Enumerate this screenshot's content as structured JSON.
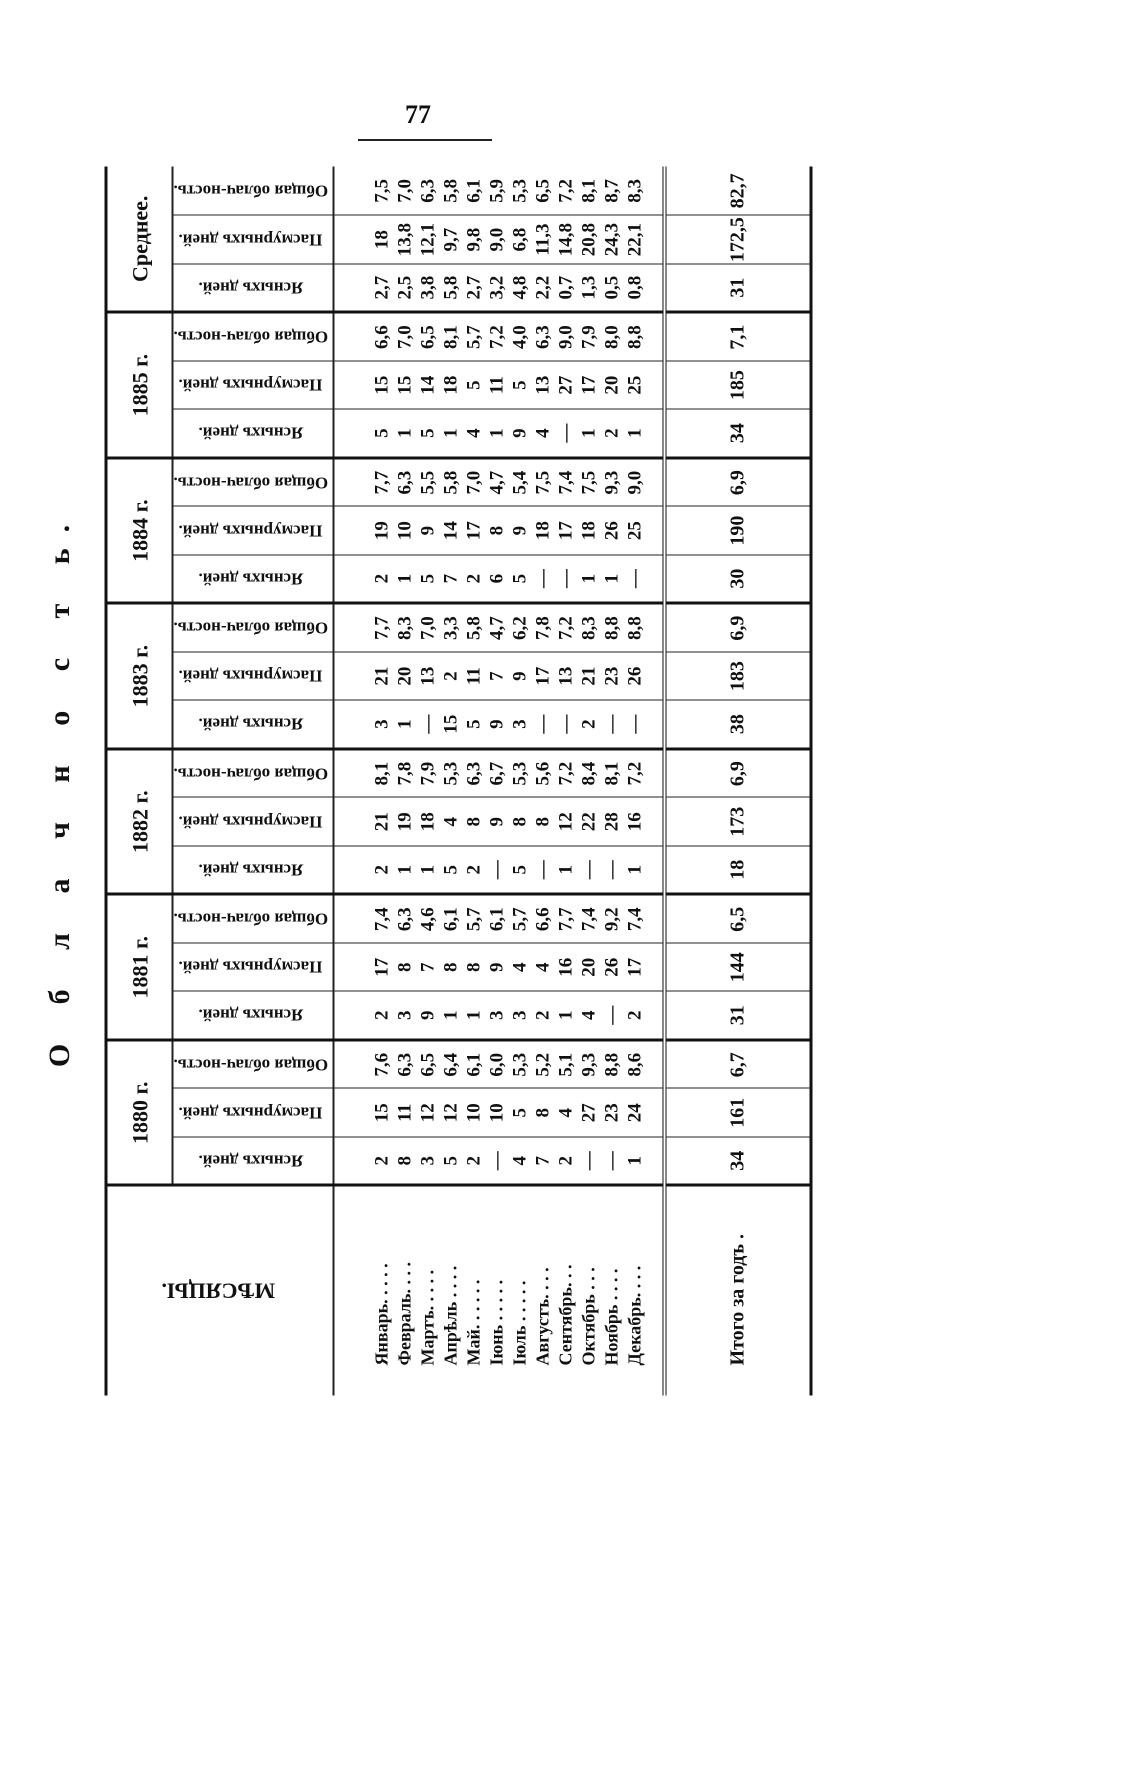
{
  "page_number": "77",
  "title": "О б л а ч н о с т ь.",
  "table": {
    "months_header": "МѢСЯЦЫ.",
    "subheaders": {
      "clear": "Ясныхъ дней.",
      "cloudy": "Пасмурныхъ дней.",
      "cloudiness": "Общая облач-ность."
    },
    "months": [
      "Январь. . . . .",
      "Февраль. . . .",
      "Мартъ. . . . .",
      "Апрѣль . . . .",
      "Май. . . . . .",
      "Іюнь . . . . .",
      "Іюль . . . . .",
      "Августъ. . . .",
      "Сентябрь. . .",
      "Октябрь . . .",
      "Ноябрь . . . .",
      "Декабрь. . . ."
    ],
    "total_label": "Итого за годъ .",
    "groups": [
      {
        "label": "1880 г.",
        "clear": [
          "2",
          "8",
          "3",
          "5",
          "2",
          "—",
          "4",
          "7",
          "2",
          "—",
          "—",
          "1"
        ],
        "cloudy": [
          "15",
          "11",
          "12",
          "12",
          "10",
          "10",
          "5",
          "8",
          "4",
          "27",
          "23",
          "24"
        ],
        "cloudiness": [
          "7,6",
          "6,3",
          "6,5",
          "6,4",
          "6,1",
          "6,0",
          "5,3",
          "5,2",
          "5,1",
          "9,3",
          "8,8",
          "8,6"
        ],
        "total": {
          "clear": "34",
          "cloudy": "161",
          "cloudiness": "6,7"
        }
      },
      {
        "label": "1881 г.",
        "clear": [
          "2",
          "3",
          "9",
          "1",
          "1",
          "3",
          "3",
          "2",
          "1",
          "4",
          "—",
          "2"
        ],
        "cloudy": [
          "17",
          "8",
          "7",
          "8",
          "8",
          "9",
          "4",
          "4",
          "16",
          "20",
          "26",
          "17"
        ],
        "cloudiness": [
          "7,4",
          "6,3",
          "4,6",
          "6,1",
          "5,7",
          "6,1",
          "5,7",
          "6,6",
          "7,7",
          "7,4",
          "9,2",
          "7,4"
        ],
        "total": {
          "clear": "31",
          "cloudy": "144",
          "cloudiness": "6,5"
        }
      },
      {
        "label": "1882 г.",
        "clear": [
          "2",
          "1",
          "1",
          "5",
          "2",
          "—",
          "5",
          "—",
          "1",
          "—",
          "—",
          "1"
        ],
        "cloudy": [
          "21",
          "19",
          "18",
          "4",
          "8",
          "9",
          "8",
          "8",
          "12",
          "22",
          "28",
          "16"
        ],
        "cloudiness": [
          "8,1",
          "7,8",
          "7,9",
          "5,3",
          "6,3",
          "6,7",
          "5,3",
          "5,6",
          "7,2",
          "8,4",
          "8,1",
          "7,2"
        ],
        "total": {
          "clear": "18",
          "cloudy": "173",
          "cloudiness": "6,9"
        }
      },
      {
        "label": "1883 г.",
        "clear": [
          "3",
          "1",
          "—",
          "15",
          "5",
          "9",
          "3",
          "—",
          "—",
          "2",
          "—",
          "—"
        ],
        "cloudy": [
          "21",
          "20",
          "13",
          "2",
          "11",
          "7",
          "9",
          "17",
          "13",
          "21",
          "23",
          "26"
        ],
        "cloudiness": [
          "7,7",
          "8,3",
          "7,0",
          "3,3",
          "5,8",
          "4,7",
          "6,2",
          "7,8",
          "7,2",
          "8,3",
          "8,8",
          "8,8"
        ],
        "total": {
          "clear": "38",
          "cloudy": "183",
          "cloudiness": "6,9"
        }
      },
      {
        "label": "1884 г.",
        "clear": [
          "2",
          "1",
          "5",
          "7",
          "2",
          "6",
          "5",
          "—",
          "—",
          "1",
          "1",
          "—"
        ],
        "cloudy": [
          "19",
          "10",
          "9",
          "14",
          "17",
          "8",
          "9",
          "18",
          "17",
          "18",
          "26",
          "25"
        ],
        "cloudiness": [
          "7,7",
          "6,3",
          "5,5",
          "5,8",
          "7,0",
          "4,7",
          "5,4",
          "7,5",
          "7,4",
          "7,5",
          "9,3",
          "9,0"
        ],
        "total": {
          "clear": "30",
          "cloudy": "190",
          "cloudiness": "6,9"
        }
      },
      {
        "label": "1885 г.",
        "clear": [
          "5",
          "1",
          "5",
          "1",
          "4",
          "1",
          "9",
          "4",
          "—",
          "1",
          "2",
          "1"
        ],
        "cloudy": [
          "15",
          "15",
          "14",
          "18",
          "5",
          "11",
          "5",
          "13",
          "27",
          "17",
          "20",
          "25"
        ],
        "cloudiness": [
          "6,6",
          "7,0",
          "6,5",
          "8,1",
          "5,7",
          "7,2",
          "4,0",
          "6,3",
          "9,0",
          "7,9",
          "8,0",
          "8,8"
        ],
        "total": {
          "clear": "34",
          "cloudy": "185",
          "cloudiness": "7,1"
        }
      },
      {
        "label": "Среднее.",
        "clear": [
          "2,7",
          "2,5",
          "3,8",
          "5,8",
          "2,7",
          "3,2",
          "4,8",
          "2,2",
          "0,7",
          "1,3",
          "0,5",
          "0,8"
        ],
        "cloudy": [
          "18",
          "13,8",
          "12,1",
          "9,7",
          "9,8",
          "9,0",
          "6,8",
          "11,3",
          "14,8",
          "20,8",
          "24,3",
          "22,1"
        ],
        "cloudiness": [
          "7,5",
          "7,0",
          "6,3",
          "5,8",
          "6,1",
          "5,9",
          "5,3",
          "6,5",
          "7,2",
          "8,1",
          "8,7",
          "8,3"
        ],
        "total": {
          "clear": "31",
          "cloudy": "172,5",
          "cloudiness": "82,7"
        }
      }
    ]
  }
}
